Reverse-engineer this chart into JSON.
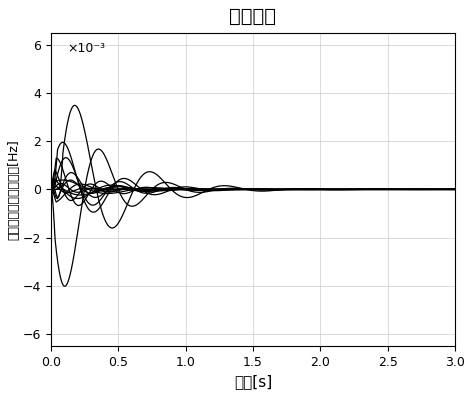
{
  "title": "制御なし",
  "xlabel": "時間[s]",
  "ylabel": "各発電機の周波数変動[Hz]",
  "xlim": [
    0,
    3
  ],
  "ylim": [
    -6.5,
    6.5
  ],
  "yticks": [
    -6,
    -4,
    -2,
    0,
    2,
    4,
    6
  ],
  "xticks": [
    0,
    0.5,
    1,
    1.5,
    2,
    2.5,
    3
  ],
  "scale_text": "×10⁻³",
  "background_color": "#ffffff",
  "grid_color": "#cccccc",
  "line_color": "#000000",
  "t_end": 3.0,
  "dt": 0.002,
  "curve_params": [
    [
      6.0,
      2.0,
      3.5,
      3.14159,
      0.0
    ],
    [
      5.0,
      1.8,
      2.8,
      0.0,
      0.06
    ],
    [
      2.5,
      2.2,
      3.2,
      0.4,
      0.02
    ],
    [
      2.0,
      2.5,
      3.5,
      -0.4,
      0.0
    ],
    [
      1.5,
      3.0,
      4.0,
      0.8,
      0.01
    ],
    [
      1.2,
      2.8,
      4.2,
      -0.8,
      0.03
    ],
    [
      1.0,
      3.5,
      5.0,
      1.2,
      0.0
    ],
    [
      0.8,
      3.2,
      5.5,
      -1.2,
      0.02
    ],
    [
      0.7,
      2.0,
      3.0,
      2.0,
      0.0
    ],
    [
      0.6,
      2.5,
      4.5,
      -2.0,
      0.01
    ],
    [
      0.5,
      1.5,
      2.5,
      0.5,
      0.0
    ],
    [
      0.4,
      4.0,
      6.0,
      -0.5,
      0.0
    ],
    [
      0.35,
      1.8,
      2.2,
      2.5,
      0.04
    ],
    [
      0.3,
      3.8,
      6.5,
      1.8,
      0.01
    ]
  ]
}
